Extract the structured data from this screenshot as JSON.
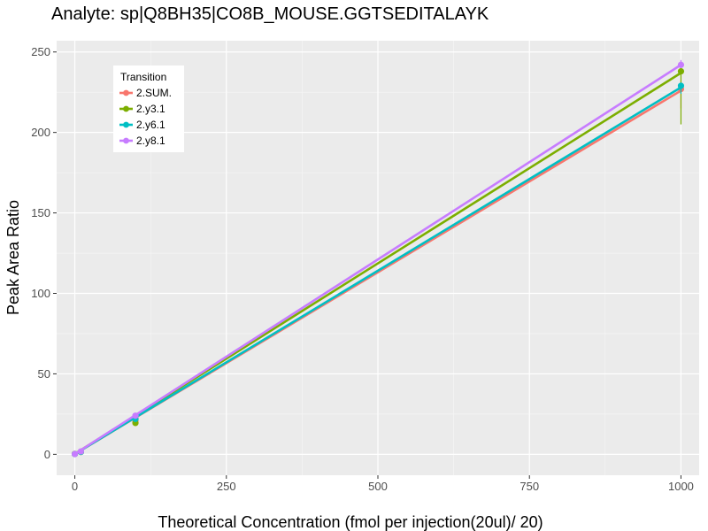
{
  "chart_data": {
    "type": "line",
    "title": "Analyte: sp|Q8BH35|CO8B_MOUSE.GGTSEDITALAYK",
    "xlabel": "Theoretical Concentration (fmol per injection(20ul)/ 20)",
    "ylabel": "Peak Area Ratio",
    "xlim": [
      -30,
      1030
    ],
    "ylim": [
      -13,
      257
    ],
    "x_ticks": [
      0,
      250,
      500,
      750,
      1000
    ],
    "x_tick_labels": [
      "0",
      "250",
      "500",
      "750",
      "1000"
    ],
    "y_ticks": [
      0,
      50,
      100,
      150,
      200,
      250
    ],
    "y_tick_labels": [
      "0",
      "50",
      "100",
      "150",
      "200",
      "250"
    ],
    "grid": true,
    "legend": {
      "title": "Transition",
      "placement": "top-left"
    },
    "series": [
      {
        "name": "2.SUM.",
        "color": "#F8766D",
        "points": [
          [
            0,
            0.2
          ],
          [
            10,
            1.5
          ],
          [
            100,
            21
          ],
          [
            1000,
            227
          ]
        ],
        "fit": [
          [
            0,
            0.2
          ],
          [
            1000,
            226
          ]
        ],
        "errorbars": [
          [
            1000,
            215,
            232
          ]
        ]
      },
      {
        "name": "2.y3.1",
        "color": "#7CAE00",
        "points": [
          [
            0,
            0.3
          ],
          [
            10,
            1.5
          ],
          [
            100,
            19.5
          ],
          [
            1000,
            238
          ]
        ],
        "fit": [
          [
            0,
            0.3
          ],
          [
            1000,
            237
          ]
        ],
        "errorbars": [
          [
            1000,
            205,
            240
          ]
        ]
      },
      {
        "name": "2.y6.1",
        "color": "#00BFC4",
        "points": [
          [
            0,
            0.2
          ],
          [
            10,
            1.5
          ],
          [
            100,
            22
          ],
          [
            1000,
            229
          ]
        ],
        "fit": [
          [
            0,
            0.2
          ],
          [
            1000,
            228
          ]
        ],
        "errorbars": [
          [
            1000,
            224,
            231
          ]
        ]
      },
      {
        "name": "2.y8.1",
        "color": "#C77CFF",
        "points": [
          [
            0,
            0.2
          ],
          [
            10,
            1.8
          ],
          [
            100,
            24
          ],
          [
            1000,
            242
          ]
        ],
        "fit": [
          [
            0,
            0.2
          ],
          [
            1000,
            242
          ]
        ],
        "errorbars": [
          [
            1000,
            240,
            245
          ]
        ]
      }
    ]
  }
}
